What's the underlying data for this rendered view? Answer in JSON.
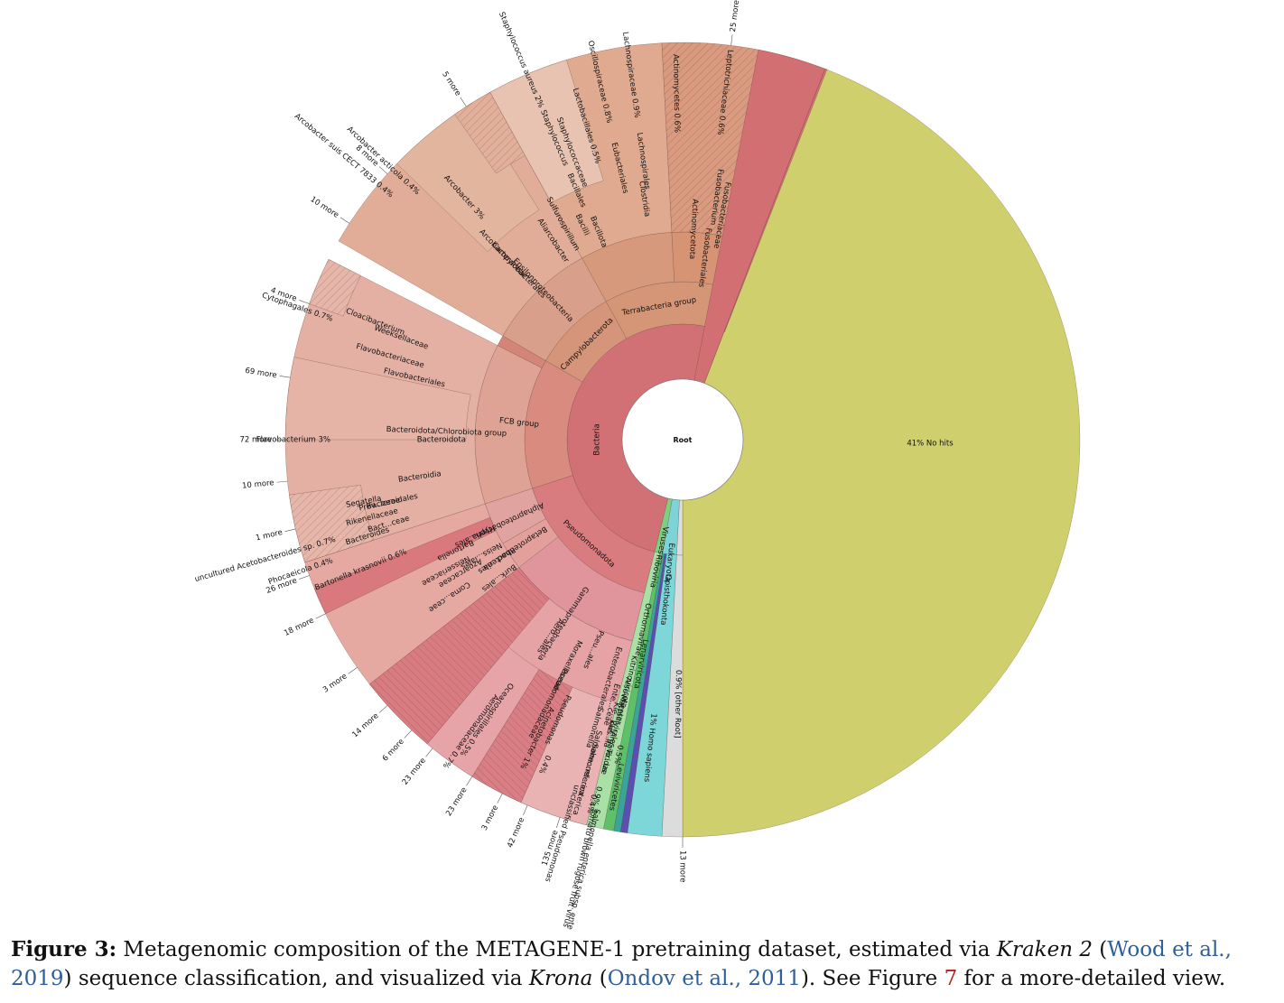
{
  "chart_data": {
    "type": "sunburst",
    "center_label": "Root",
    "segments": [
      {
        "name": "No hits",
        "percent": 41,
        "label": "41%   No hits",
        "color": "#cfcf6e"
      },
      {
        "name": "Bacteria",
        "color": "#d27175"
      },
      {
        "name": "Eukaryota",
        "color": "#7dd3d6"
      },
      {
        "name": "Viruses",
        "color": "#7fcf82"
      },
      {
        "name": "[other Root]",
        "percent": 0.9,
        "color": "#dcdcdc"
      },
      {
        "name": "Homo sapiens",
        "percent": 1
      },
      {
        "name": "Tomato brown rugose fruit virus",
        "percent": 0.9
      },
      {
        "name": "Flavobacterium",
        "percent": 3
      },
      {
        "name": "Arcobacter",
        "percent": 3
      },
      {
        "name": "Staphylococcus aureus",
        "percent": 2
      },
      {
        "name": "Acinetobacter",
        "percent": 1
      },
      {
        "name": "Cytophagales",
        "percent": 0.7
      },
      {
        "name": "Leptotrichiaceae",
        "percent": 0.6
      },
      {
        "name": "Actinomycetes",
        "percent": 0.6
      },
      {
        "name": "Oscillospiraceae",
        "percent": 0.8
      },
      {
        "name": "Lachnospiraceae",
        "percent": 0.9
      },
      {
        "name": "Lactobacillales",
        "percent": 0.5
      },
      {
        "name": "Bartonella krasnovii",
        "percent": 0.6
      },
      {
        "name": "Oceanospirillales",
        "percent": 0.5
      },
      {
        "name": "Aeromonadaceae",
        "percent": 0.7
      },
      {
        "name": "uncultured Acetobacteroides sp.",
        "percent": 0.7
      },
      {
        "name": "Phocaeicola",
        "percent": 0.4
      },
      {
        "name": "Arcobacter acticola",
        "percent": 0.4
      },
      {
        "name": "Arcobacter suis CECT 7833",
        "percent": 0.4
      },
      {
        "name": "unclassified Pseudomonas",
        "percent": 0.4
      },
      {
        "name": "Salmonella enterica subsp. enterica serovar Anatum",
        "percent": 0.4
      }
    ],
    "labels": {
      "root": "Root",
      "no_hits": "41%   No hits",
      "bacteria": "Bacteria",
      "fcb": "FCB group",
      "bact_chlorobiota": "Bacteroidota/Chlorobiota group",
      "bacteroidota": "Bacteroidota",
      "bacteroidia": "Bacteroidia",
      "bacteroidales": "Bacteroidales",
      "flavobacteriales": "Flavobacteriales",
      "flavobacteriaceae": "Flavobacteriaceae",
      "weeksellaceae": "Weeksellaceae",
      "chryseo": "Cloacibacterium",
      "flavobacterium": "Flavobacterium   3%",
      "cytophagales": "Cytophagales   0.7%",
      "prev": "Prev...ceae",
      "bact_ceae": "Bact...ceae",
      "rikenellaceae": "Rikenellaceae",
      "segatella": "Segatella",
      "bacteroides": "Bacteroides",
      "acetobacteroides": "uncultured Acetobacteroides sp.   0.7%",
      "phocaeicola": "Phocaeicola   0.4%",
      "campylobacterota": "Campylobacterota",
      "epsilon": "Epsilonproteobacteria",
      "campylobacterales": "Campylobacterales",
      "arcobacteraceae": "Arcobacteraceae",
      "aliarcobacter": "Aliarcobacter",
      "sulfurospirillum": "Sulfurospirillum",
      "arcobacter": "Arcobacter   3%",
      "arco_acticola": "Arcobacter acticola   0.4%",
      "arco_suis": "Arcobacter suis CECT 7833   0.4%",
      "terrabacteria": "Terrabacteria group",
      "bacillota": "Bacillota",
      "bacilli": "Bacilli",
      "bacillales": "Bacillales",
      "staphylococcaceae": "Staphylococcaceae",
      "staphylococcus": "Staphylococcus",
      "staph_aureus": "Staphylococcus aureus   2%",
      "lactobacillales": "Lactobacillales   0.5%",
      "clostridia": "Clostridia",
      "eubacteriales": "Eubacteriales",
      "lachnospirales": "Lachnospirales",
      "oscillo": "Oscillospiraceae   0.8%",
      "lachno": "Lachnospiraceae   0.9%",
      "actinomycetota": "Actinomycetota",
      "actinomycetes": "Actinomycetes   0.6%",
      "fusobacteriales": "Fusobacteriales",
      "fusobacteriaceae": "Fusobacteriaceae",
      "fusobacterium": "Fusobacterium",
      "leptotrichiaceae": "Leptotrichiaceae   0.6%",
      "pseudomonadota": "Pseudomonadota",
      "alphaproteo": "Alphaproteobacteria",
      "hyph": "Hyph...ales",
      "bartonella": "Bartonella",
      "bart_krasnovii": "Bartonella krasnovii   0.6%",
      "betaproteo": "Betaproteobacteria",
      "neiss": "Neiss...iales",
      "neisseriaceae": "Neisseriaceae",
      "burk": "Burk...ales",
      "rhod": "Rhod...ales",
      "alcaligenaceae": "Alcaligenaceae",
      "coma": "Coma...ceae",
      "azoarcaceae": "Azoarcaceae",
      "gammaproteo": "Gammaproteobacteria",
      "moraxellaceae": "Moraxellaceae",
      "aero": "Aero...ales",
      "pseu_ales": "Pseu...ales",
      "enterobacterales": "Enterobacterales",
      "pseudomonadaceae": "Pseudomonadaceae",
      "pseudomonas": "Pseudomonas",
      "ente_ceae": "Ente...ceae",
      "kle_ous": "Kle...ous",
      "kle_lla": "Kle...lla",
      "salmonella": "Salmonella",
      "salmone_enterica": "Salmone...nterica",
      "salmonel_enterica": "Salmonel...enterica",
      "acinetobacter": "Acinetobacter   1%",
      "oceanospirillales": "Oceanospirillales   0.5%",
      "aeromonadaceae": "Aeromonadaceae   0.7%",
      "uncl_pseudo": "unclassified Pseudomonas",
      "pct_uncl_pseudo": "0.4%",
      "salm_anatum": "Salmonella enterica subsp. enterica serovar Anatum",
      "pct_anatum": "0.4%",
      "other_root": "0.9%   [other Root]",
      "eukaryota": "Eukaryota",
      "opisthokonta": "Opisthokonta",
      "homo_sapiens": "1%   Homo sapiens",
      "viruses": "Viruses",
      "riboviria": "Riboviria",
      "orthornavirae": "Orthornavirae",
      "lenarviricota": "Lenarviricota",
      "kitrinoviricota": "Kitrinoviricota",
      "alsuviricetes": "Alsuviricetes",
      "martellivirales": "Martellivirales",
      "virgaviridae": "Virgaviridae",
      "to_us": "To...us",
      "leviviricetes": "Leviviricetes",
      "pct_05": "0.5%",
      "pct_09": "0.9%",
      "tomato": "Tomato brown rugose fruit virus"
    },
    "more_labels": {
      "m25": "25 more",
      "m5": "5 more",
      "m8": "8 more",
      "m10a": "10 more",
      "m4": "4 more",
      "m69": "69 more",
      "m72": "72 more",
      "m10b": "10 more",
      "m1": "1 more",
      "m26": "26 more",
      "m18": "18 more",
      "m3a": "3 more",
      "m14": "14 more",
      "m6": "6 more",
      "m23a": "23 more",
      "m23b": "23 more",
      "m3b": "3 more",
      "m42": "42 more",
      "m135": "135 more",
      "m13": "13 more"
    }
  },
  "caption": {
    "figure_label": "Figure 3:",
    "text1": " Metagenomic composition of the METAGENE-1 pretraining dataset, estimated via ",
    "kraken": "Kraken 2",
    "text2": " (",
    "cite1": "Wood et al., 2019",
    "text3": ") sequence classification, and visualized via ",
    "krona": "Krona",
    "text4": " (",
    "cite2": "Ondov et al., 2011",
    "text5": "). See Figure ",
    "fig_ref": "7",
    "text6": " for a more-detailed view."
  }
}
